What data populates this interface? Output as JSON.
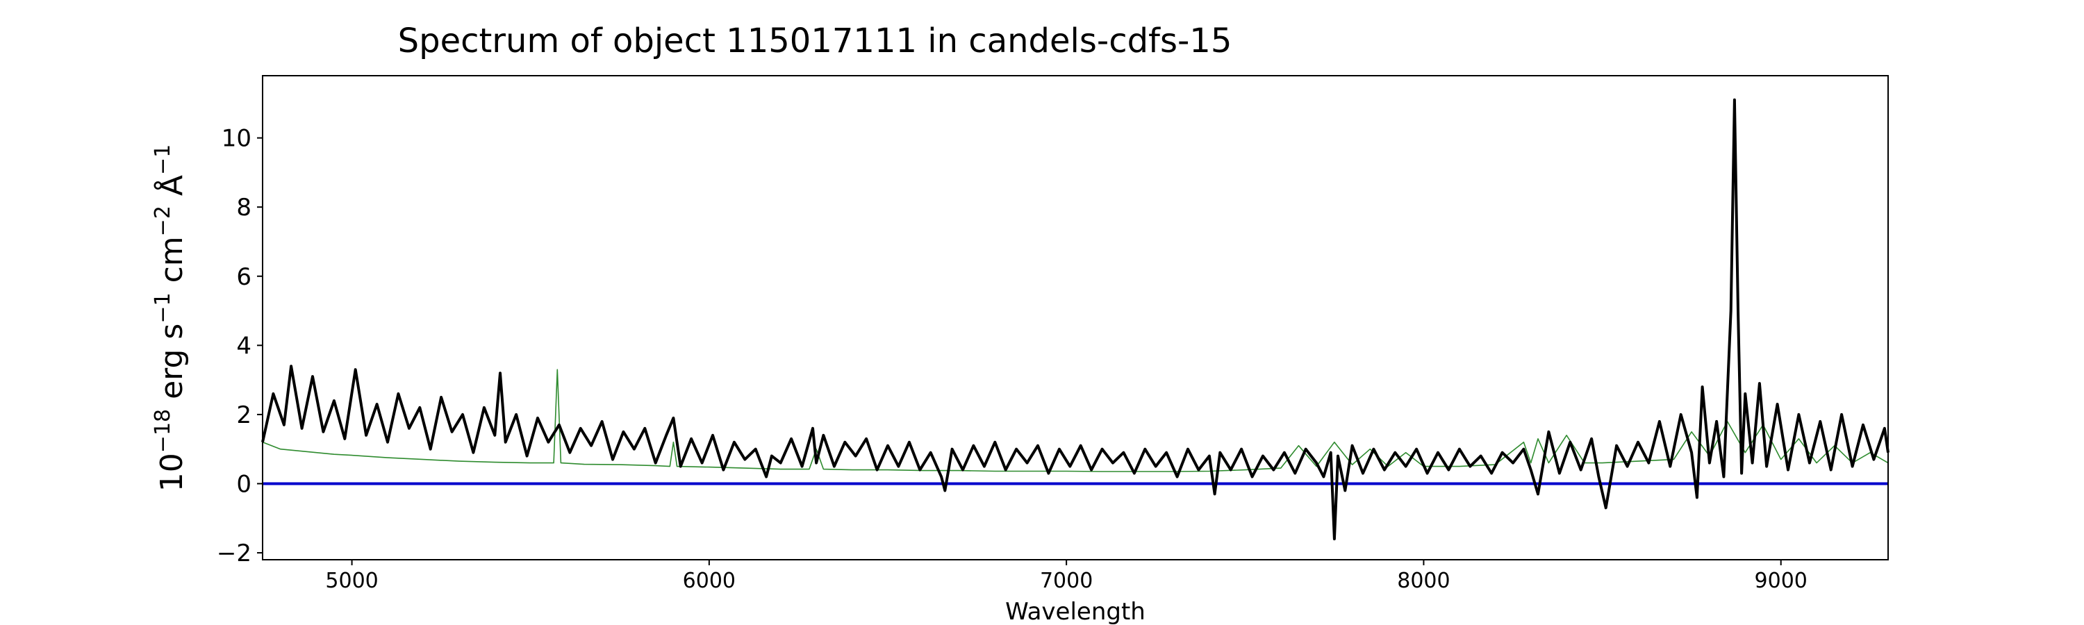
{
  "chart_data": {
    "type": "line",
    "title": "Spectrum of object 115017111 in candels-cdfs-15",
    "xlabel": "Wavelength",
    "ylabel_parts": {
      "base": "10",
      "exp_scale": "−18",
      "erg": " erg s",
      "exp_s": "−1",
      "cm": " cm",
      "exp_cm": "−2",
      "ang": " Å",
      "exp_ang": "−1"
    },
    "xlim": [
      4750,
      9300
    ],
    "ylim": [
      -2.2,
      11.8
    ],
    "xticks": [
      5000,
      6000,
      7000,
      8000,
      9000
    ],
    "xtick_labels": [
      "5000",
      "6000",
      "7000",
      "8000",
      "9000"
    ],
    "yticks": [
      -2,
      0,
      2,
      4,
      6,
      8,
      10
    ],
    "ytick_labels": [
      "−2",
      "0",
      "2",
      "4",
      "6",
      "8",
      "10"
    ],
    "grid": false,
    "colors": {
      "flux": "#000000",
      "noise": "#2e8b2e",
      "zero": "#0000cc"
    },
    "series": [
      {
        "color": "#000000",
        "x": [
          4750,
          4780,
          4810,
          4830,
          4860,
          4890,
          4920,
          4950,
          4980,
          5010,
          5040,
          5070,
          5100,
          5130,
          5160,
          5190,
          5220,
          5250,
          5280,
          5310,
          5340,
          5370,
          5400,
          5415,
          5430,
          5460,
          5490,
          5520,
          5550,
          5580,
          5610,
          5640,
          5670,
          5700,
          5730,
          5760,
          5790,
          5820,
          5850,
          5880,
          5900,
          5920,
          5950,
          5980,
          6010,
          6040,
          6070,
          6100,
          6130,
          6160,
          6175,
          6200,
          6230,
          6260,
          6290,
          6300,
          6320,
          6350,
          6380,
          6410,
          6440,
          6470,
          6500,
          6530,
          6560,
          6590,
          6620,
          6650,
          6660,
          6680,
          6710,
          6740,
          6770,
          6800,
          6830,
          6860,
          6890,
          6920,
          6950,
          6980,
          7010,
          7040,
          7070,
          7100,
          7130,
          7160,
          7190,
          7220,
          7250,
          7280,
          7310,
          7340,
          7370,
          7400,
          7415,
          7430,
          7460,
          7490,
          7520,
          7550,
          7580,
          7610,
          7640,
          7670,
          7700,
          7720,
          7740,
          7750,
          7760,
          7780,
          7800,
          7830,
          7860,
          7890,
          7920,
          7950,
          7980,
          8010,
          8040,
          8070,
          8100,
          8130,
          8160,
          8190,
          8220,
          8250,
          8280,
          8300,
          8320,
          8350,
          8380,
          8410,
          8440,
          8470,
          8490,
          8510,
          8540,
          8570,
          8600,
          8630,
          8660,
          8690,
          8720,
          8750,
          8765,
          8780,
          8800,
          8820,
          8840,
          8860,
          8870,
          8880,
          8890,
          8900,
          8920,
          8940,
          8960,
          8990,
          9020,
          9050,
          9080,
          9110,
          9140,
          9170,
          9200,
          9230,
          9260,
          9290,
          9300
        ],
        "y": [
          1.2,
          2.6,
          1.7,
          3.4,
          1.6,
          3.1,
          1.5,
          2.4,
          1.3,
          3.3,
          1.4,
          2.3,
          1.2,
          2.6,
          1.6,
          2.2,
          1.0,
          2.5,
          1.5,
          2.0,
          0.9,
          2.2,
          1.4,
          3.2,
          1.2,
          2.0,
          0.8,
          1.9,
          1.2,
          1.7,
          0.9,
          1.6,
          1.1,
          1.8,
          0.7,
          1.5,
          1.0,
          1.6,
          0.6,
          1.4,
          1.9,
          0.5,
          1.3,
          0.6,
          1.4,
          0.4,
          1.2,
          0.7,
          1.0,
          0.2,
          0.8,
          0.6,
          1.3,
          0.5,
          1.6,
          0.6,
          1.4,
          0.5,
          1.2,
          0.8,
          1.3,
          0.4,
          1.1,
          0.5,
          1.2,
          0.4,
          0.9,
          0.2,
          -0.2,
          1.0,
          0.4,
          1.1,
          0.5,
          1.2,
          0.4,
          1.0,
          0.6,
          1.1,
          0.3,
          1.0,
          0.5,
          1.1,
          0.4,
          1.0,
          0.6,
          0.9,
          0.3,
          1.0,
          0.5,
          0.9,
          0.2,
          1.0,
          0.4,
          0.8,
          -0.3,
          0.9,
          0.4,
          1.0,
          0.2,
          0.8,
          0.4,
          0.9,
          0.3,
          1.0,
          0.6,
          0.2,
          0.9,
          -1.6,
          0.8,
          -0.2,
          1.1,
          0.3,
          1.0,
          0.4,
          0.9,
          0.5,
          1.0,
          0.3,
          0.9,
          0.4,
          1.0,
          0.5,
          0.8,
          0.3,
          0.9,
          0.6,
          1.0,
          0.4,
          -0.3,
          1.5,
          0.3,
          1.2,
          0.4,
          1.3,
          0.2,
          -0.7,
          1.1,
          0.5,
          1.2,
          0.6,
          1.8,
          0.5,
          2.0,
          0.9,
          -0.4,
          2.8,
          0.6,
          1.8,
          0.2,
          5.0,
          11.1,
          5.0,
          0.3,
          2.6,
          0.6,
          2.9,
          0.5,
          2.3,
          0.4,
          2.0,
          0.6,
          1.8,
          0.4,
          2.0,
          0.5,
          1.7,
          0.7,
          1.6,
          0.9
        ]
      },
      {
        "color": "#2e8b2e",
        "x": [
          4750,
          4800,
          4850,
          4900,
          4950,
          5000,
          5100,
          5200,
          5300,
          5400,
          5500,
          5565,
          5575,
          5585,
          5650,
          5750,
          5850,
          5890,
          5900,
          5910,
          6000,
          6100,
          6200,
          6280,
          6300,
          6320,
          6400,
          6500,
          6600,
          6700,
          6800,
          6900,
          7000,
          7100,
          7200,
          7300,
          7400,
          7500,
          7600,
          7650,
          7700,
          7750,
          7800,
          7850,
          7900,
          7950,
          8000,
          8100,
          8200,
          8280,
          8300,
          8320,
          8350,
          8400,
          8450,
          8500,
          8600,
          8700,
          8750,
          8800,
          8850,
          8900,
          8950,
          9000,
          9050,
          9100,
          9150,
          9200,
          9250,
          9300
        ],
        "y": [
          1.2,
          1.0,
          0.95,
          0.9,
          0.85,
          0.82,
          0.75,
          0.7,
          0.65,
          0.62,
          0.6,
          0.6,
          3.3,
          0.6,
          0.56,
          0.55,
          0.52,
          0.5,
          1.2,
          0.5,
          0.48,
          0.45,
          0.42,
          0.42,
          1.0,
          0.42,
          0.4,
          0.4,
          0.38,
          0.38,
          0.36,
          0.36,
          0.36,
          0.35,
          0.35,
          0.35,
          0.36,
          0.4,
          0.45,
          1.1,
          0.5,
          1.2,
          0.55,
          1.0,
          0.5,
          0.9,
          0.5,
          0.5,
          0.55,
          1.2,
          0.6,
          1.3,
          0.6,
          1.4,
          0.6,
          0.6,
          0.65,
          0.7,
          1.5,
          0.8,
          1.8,
          0.9,
          1.7,
          0.7,
          1.3,
          0.6,
          1.1,
          0.6,
          0.9,
          0.6
        ]
      },
      {
        "color": "#0000cc",
        "x": [
          4750,
          9300
        ],
        "y": [
          0,
          0
        ]
      }
    ]
  }
}
